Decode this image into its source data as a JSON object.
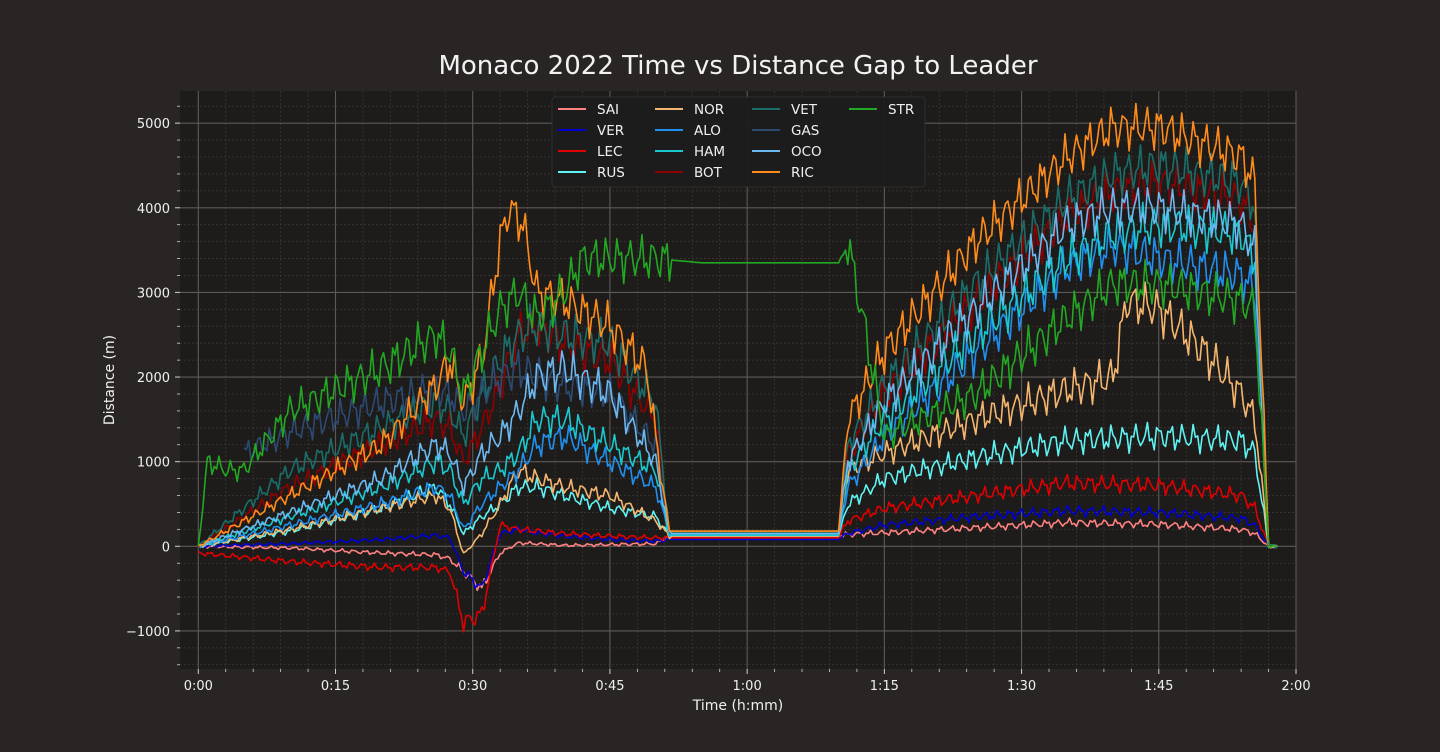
{
  "chart_data": {
    "type": "line",
    "title": "Monaco 2022 Time vs Distance Gap to Leader",
    "xlabel": "Time (h:mm)",
    "ylabel": "Distance (m)",
    "x_unit": "minutes",
    "xlim": [
      -2,
      120
    ],
    "ylim": [
      -1450,
      5380
    ],
    "x_ticks": [
      {
        "value": 0,
        "label": "0:00"
      },
      {
        "value": 15,
        "label": "0:15"
      },
      {
        "value": 30,
        "label": "0:30"
      },
      {
        "value": 45,
        "label": "0:45"
      },
      {
        "value": 60,
        "label": "1:00"
      },
      {
        "value": 75,
        "label": "1:15"
      },
      {
        "value": 90,
        "label": "1:30"
      },
      {
        "value": 105,
        "label": "1:45"
      },
      {
        "value": 120,
        "label": "2:00"
      }
    ],
    "y_ticks": [
      {
        "value": -1000,
        "label": "−1000"
      },
      {
        "value": 0,
        "label": "0"
      },
      {
        "value": 1000,
        "label": "1000"
      },
      {
        "value": 2000,
        "label": "2000"
      },
      {
        "value": 3000,
        "label": "3000"
      },
      {
        "value": 4000,
        "label": "4000"
      },
      {
        "value": 5000,
        "label": "5000"
      }
    ],
    "grid": true,
    "minor_grid": true,
    "legend_position": "top-center",
    "legend_columns": 4,
    "colors": {
      "background": "#292524",
      "plot_background": "#1e1c1a",
      "major_grid": "#5c5956",
      "minor_grid": "#3a3735",
      "text": "#f0f0f0",
      "legend_background": "#1c1c1c"
    },
    "series": [
      {
        "name": "SAI",
        "color": "#ff8282",
        "x": [
          0,
          10,
          20,
          26,
          27.5,
          29,
          31,
          33,
          35,
          37,
          40,
          45,
          50,
          51.5,
          70,
          71,
          75,
          85,
          95,
          105,
          114,
          115.5,
          117,
          118
        ],
        "y": [
          0,
          -20,
          -80,
          -100,
          -150,
          -300,
          -500,
          -80,
          40,
          30,
          10,
          20,
          30,
          120,
          120,
          140,
          160,
          220,
          280,
          260,
          200,
          150,
          0,
          0
        ]
      },
      {
        "name": "VER",
        "color": "#0000d0",
        "x": [
          0,
          10,
          20,
          26,
          27.5,
          29,
          31,
          33,
          35,
          37,
          40,
          45,
          50,
          51.5,
          70,
          71,
          75,
          85,
          95,
          105,
          114,
          115.5,
          117,
          118
        ],
        "y": [
          0,
          30,
          80,
          130,
          100,
          -300,
          -500,
          150,
          200,
          160,
          120,
          80,
          60,
          80,
          80,
          150,
          250,
          350,
          420,
          400,
          330,
          250,
          0,
          0
        ]
      },
      {
        "name": "LEC",
        "color": "#e00000",
        "x": [
          0,
          10,
          20,
          26,
          27.5,
          29,
          31,
          33,
          35,
          37,
          40,
          45,
          50,
          51.5,
          70,
          71,
          75,
          85,
          95,
          105,
          114,
          115.5,
          117,
          118
        ],
        "y": [
          -80,
          -180,
          -250,
          -250,
          -300,
          -900,
          -800,
          250,
          200,
          180,
          150,
          120,
          100,
          100,
          100,
          300,
          450,
          600,
          750,
          720,
          600,
          450,
          0,
          0
        ]
      },
      {
        "name": "RUS",
        "color": "#5ef2f2",
        "x": [
          0,
          10,
          20,
          26,
          27.5,
          29,
          31,
          33,
          35,
          37,
          40,
          45,
          50,
          51.5,
          70,
          71,
          75,
          85,
          95,
          105,
          114,
          115.5,
          117,
          118
        ],
        "y": [
          0,
          180,
          450,
          700,
          500,
          150,
          350,
          500,
          700,
          700,
          600,
          450,
          350,
          130,
          130,
          500,
          800,
          1050,
          1250,
          1300,
          1250,
          1100,
          0,
          0
        ]
      },
      {
        "name": "NOR",
        "color": "#f4b56e",
        "x": [
          0,
          10,
          20,
          26,
          27.5,
          29,
          31,
          33,
          35,
          37,
          40,
          45,
          50,
          51.5,
          70,
          71,
          75,
          85,
          95,
          100,
          101.5,
          105,
          110,
          114,
          115.5,
          117,
          118
        ],
        "y": [
          0,
          200,
          450,
          600,
          450,
          -100,
          150,
          500,
          900,
          800,
          700,
          600,
          300,
          120,
          120,
          900,
          1100,
          1500,
          1850,
          2000,
          2900,
          2800,
          2300,
          1800,
          1500,
          0,
          0
        ]
      },
      {
        "name": "ALO",
        "color": "#2090f0",
        "x": [
          0,
          10,
          20,
          26,
          27.5,
          29,
          31,
          33,
          35,
          37,
          40,
          45,
          50,
          51.5,
          70,
          71,
          75,
          85,
          95,
          100,
          105,
          114,
          115.5,
          117,
          118
        ],
        "y": [
          0,
          250,
          500,
          700,
          600,
          200,
          500,
          700,
          900,
          1200,
          1300,
          1000,
          700,
          150,
          150,
          700,
          1300,
          2300,
          3300,
          3550,
          3400,
          3200,
          3000,
          0,
          0
        ]
      },
      {
        "name": "HAM",
        "color": "#1ac8d0",
        "x": [
          0,
          10,
          20,
          26,
          27.5,
          29,
          31,
          33,
          35,
          37,
          40,
          45,
          50,
          51.5,
          70,
          71,
          75,
          85,
          95,
          100,
          105,
          114,
          115.5,
          117,
          118
        ],
        "y": [
          0,
          350,
          700,
          1000,
          900,
          500,
          800,
          900,
          1100,
          1500,
          1500,
          1200,
          900,
          130,
          130,
          900,
          1500,
          2500,
          3400,
          3700,
          3800,
          3700,
          3400,
          0,
          0
        ]
      },
      {
        "name": "BOT",
        "color": "#900000",
        "x": [
          0,
          10,
          20,
          26,
          27.5,
          29,
          31,
          33,
          35,
          37,
          40,
          45,
          50,
          51.5,
          70,
          71,
          75,
          85,
          95,
          100,
          105,
          114,
          115.5,
          117,
          118
        ],
        "y": [
          0,
          700,
          1200,
          1500,
          1400,
          1000,
          1400,
          1900,
          2500,
          2600,
          2400,
          2200,
          1500,
          160,
          160,
          1100,
          1800,
          2900,
          3900,
          4200,
          4300,
          4100,
          3800,
          0,
          0
        ]
      },
      {
        "name": "VET",
        "color": "#1a6e6a",
        "x": [
          0,
          10,
          20,
          26,
          27.5,
          29,
          31,
          33,
          35,
          37,
          40,
          45,
          50,
          51.5,
          70,
          71,
          75,
          85,
          95,
          100,
          105,
          114,
          115.5,
          117,
          118
        ],
        "y": [
          0,
          900,
          1400,
          1700,
          1600,
          1300,
          1800,
          2200,
          2500,
          2600,
          2500,
          2400,
          1700,
          170,
          170,
          1200,
          1900,
          3100,
          4100,
          4400,
          4500,
          4300,
          4000,
          0,
          0
        ]
      },
      {
        "name": "GAS",
        "color": "#2c4a72",
        "x": [
          5,
          10,
          20,
          26,
          27.5,
          29,
          31,
          33,
          35,
          37,
          40,
          45,
          50,
          51.5
        ],
        "y": [
          1100,
          1350,
          1700,
          1850,
          1800,
          1600,
          1800,
          2000,
          2100,
          2000,
          1900,
          1800,
          1200,
          170
        ]
      },
      {
        "name": "OCO",
        "color": "#6cb8f0",
        "x": [
          0,
          10,
          20,
          26,
          27.5,
          29,
          31,
          33,
          35,
          37,
          40,
          45,
          50,
          51.5,
          70,
          71,
          75,
          85,
          95,
          100,
          105,
          114,
          115.5,
          117,
          118
        ],
        "y": [
          0,
          400,
          800,
          1200,
          1100,
          700,
          1100,
          1300,
          1600,
          2000,
          2100,
          1800,
          1000,
          150,
          150,
          1000,
          1700,
          2800,
          3800,
          4000,
          4000,
          3800,
          3500,
          0,
          0
        ]
      },
      {
        "name": "RIC",
        "color": "#ff8c1a",
        "x": [
          0,
          10,
          20,
          26,
          27.5,
          29,
          31,
          33,
          34,
          35.5,
          37,
          40,
          45,
          49,
          50.5,
          51.5,
          70,
          71,
          75,
          85,
          95,
          100,
          105,
          114,
          115.5,
          117,
          118
        ],
        "y": [
          0,
          600,
          1200,
          1900,
          2200,
          1700,
          2200,
          3600,
          4000,
          3800,
          3000,
          2900,
          2600,
          2100,
          900,
          180,
          180,
          1500,
          2300,
          3600,
          4600,
          4950,
          4950,
          4600,
          4300,
          0,
          0
        ]
      },
      {
        "name": "STR",
        "color": "#22a822",
        "x": [
          0,
          1,
          3,
          5,
          10,
          20,
          26,
          27.5,
          29,
          31,
          33,
          35,
          37,
          40,
          42,
          45,
          50,
          55,
          60,
          70,
          71,
          73,
          75,
          85,
          95,
          100,
          105,
          114,
          115.5,
          117,
          118
        ],
        "y": [
          0,
          1000,
          900,
          900,
          1600,
          2100,
          2500,
          2300,
          1800,
          2300,
          2800,
          3000,
          2700,
          3000,
          3400,
          3400,
          3400,
          3350,
          3350,
          3350,
          3600,
          2500,
          1300,
          1800,
          2700,
          3100,
          3100,
          2900,
          2800,
          0,
          0
        ]
      }
    ]
  }
}
